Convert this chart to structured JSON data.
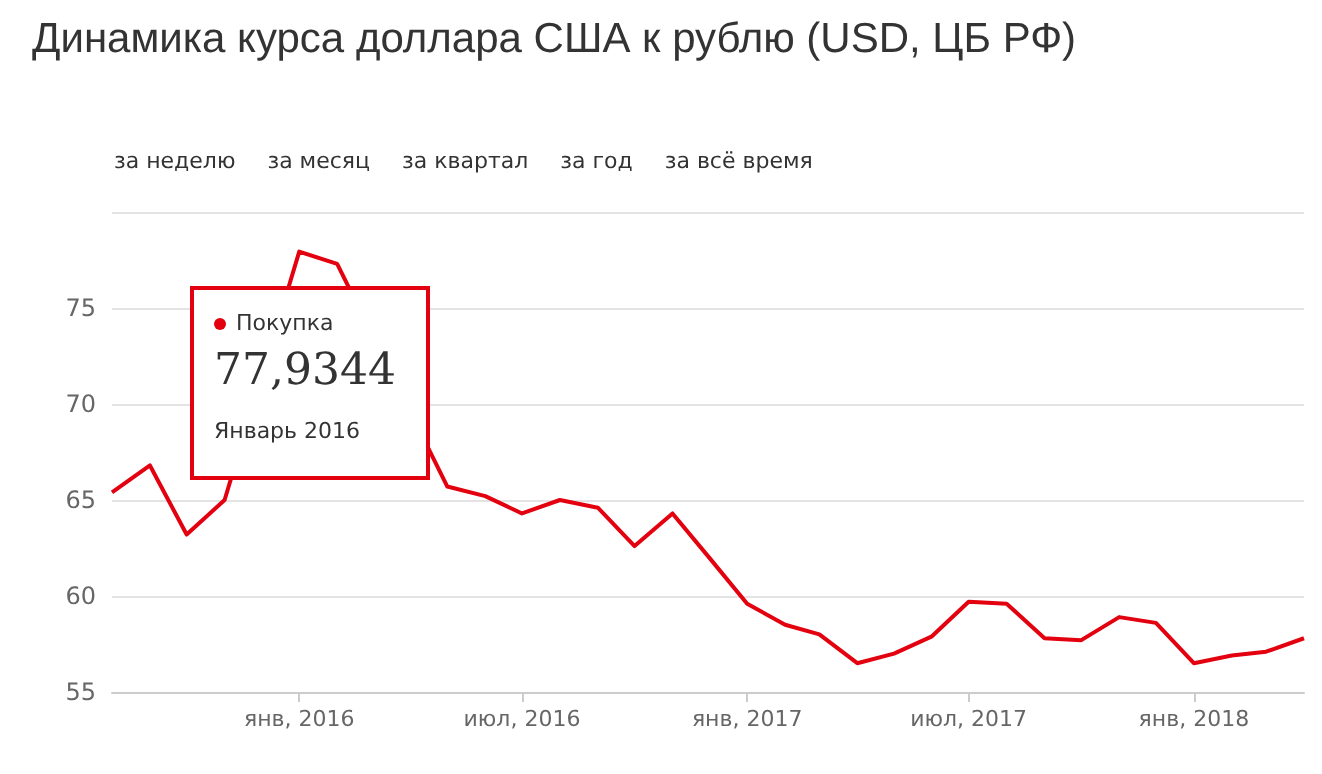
{
  "chart_data": {
    "type": "line",
    "title": "Динамика курса доллара США к рублю (USD, ЦБ РФ)",
    "x": [
      "2015-08",
      "2015-09",
      "2015-10",
      "2015-11",
      "2015-12",
      "2016-01",
      "2016-02",
      "2016-03",
      "2016-04",
      "2016-05",
      "2016-06",
      "2016-07",
      "2016-08",
      "2016-09",
      "2016-10",
      "2016-11",
      "2016-12",
      "2017-01",
      "2017-02",
      "2017-03",
      "2017-04",
      "2017-05",
      "2017-06",
      "2017-07",
      "2017-08",
      "2017-09",
      "2017-10",
      "2017-11",
      "2017-12",
      "2018-01",
      "2018-02",
      "2018-03",
      "2018-04"
    ],
    "series": [
      {
        "color": "#e3000f",
        "values": [
          65.4,
          66.8,
          63.2,
          65.0,
          null,
          77.9344,
          77.3,
          null,
          null,
          65.7,
          65.2,
          64.3,
          65.0,
          64.6,
          62.6,
          64.3,
          62.0,
          59.6,
          58.5,
          58.0,
          56.5,
          57.0,
          57.9,
          59.7,
          59.6,
          57.8,
          57.7,
          58.9,
          58.6,
          56.5,
          56.9,
          57.1,
          57.8
        ]
      }
    ],
    "xlim": [
      "2015-08",
      "2018-04"
    ],
    "xticks": [
      {
        "value": "2016-01",
        "label": "янв, 2016"
      },
      {
        "value": "2016-07",
        "label": "июл, 2016"
      },
      {
        "value": "2017-01",
        "label": "янв, 2017"
      },
      {
        "value": "2017-07",
        "label": "июл, 2017"
      },
      {
        "value": "2018-01",
        "label": "янв, 2018"
      }
    ],
    "ylim": [
      55,
      80
    ],
    "yticks": [
      55,
      60,
      65,
      70,
      75,
      {
        "value": 80,
        "label": null
      }
    ],
    "grid": "y",
    "marker": "none",
    "line_style": "solid",
    "annotations": [
      "за неделю",
      "за месяц",
      "за квартал",
      "за год",
      "за всё время",
      "Покупка",
      "77,9344",
      "Январь 2016"
    ]
  }
}
